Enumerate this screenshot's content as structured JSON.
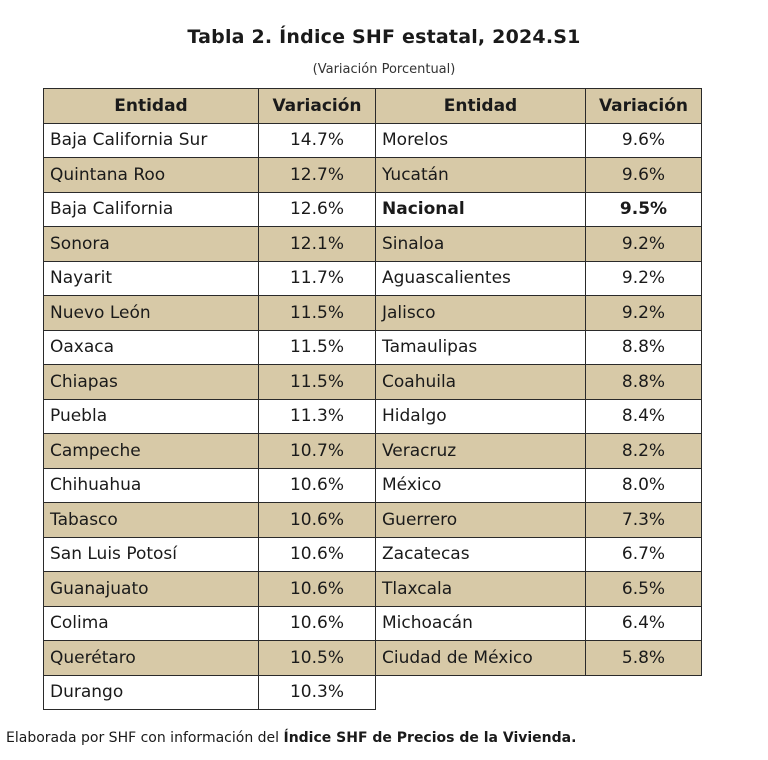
{
  "title": "Tabla 2. Índice SHF estatal, 2024.S1",
  "subtitle": "(Variación Porcentual)",
  "headers": {
    "entidad": "Entidad",
    "variacion": "Variación"
  },
  "left_rows": [
    {
      "entidad": "Baja California Sur",
      "variacion": "14.7%"
    },
    {
      "entidad": "Quintana Roo",
      "variacion": "12.7%"
    },
    {
      "entidad": "Baja California",
      "variacion": "12.6%"
    },
    {
      "entidad": "Sonora",
      "variacion": "12.1%"
    },
    {
      "entidad": "Nayarit",
      "variacion": "11.7%"
    },
    {
      "entidad": "Nuevo León",
      "variacion": "11.5%"
    },
    {
      "entidad": "Oaxaca",
      "variacion": "11.5%"
    },
    {
      "entidad": "Chiapas",
      "variacion": "11.5%"
    },
    {
      "entidad": "Puebla",
      "variacion": "11.3%"
    },
    {
      "entidad": "Campeche",
      "variacion": "10.7%"
    },
    {
      "entidad": "Chihuahua",
      "variacion": "10.6%"
    },
    {
      "entidad": "Tabasco",
      "variacion": "10.6%"
    },
    {
      "entidad": "San Luis Potosí",
      "variacion": "10.6%"
    },
    {
      "entidad": "Guanajuato",
      "variacion": "10.6%"
    },
    {
      "entidad": "Colima",
      "variacion": "10.6%"
    },
    {
      "entidad": "Querétaro",
      "variacion": "10.5%"
    },
    {
      "entidad": "Durango",
      "variacion": "10.3%"
    }
  ],
  "right_rows": [
    {
      "entidad": "Morelos",
      "variacion": "9.6%"
    },
    {
      "entidad": "Yucatán",
      "variacion": "9.6%"
    },
    {
      "entidad": "Nacional",
      "variacion": "9.5%",
      "bold": true
    },
    {
      "entidad": "Sinaloa",
      "variacion": "9.2%"
    },
    {
      "entidad": "Aguascalientes",
      "variacion": "9.2%"
    },
    {
      "entidad": "Jalisco",
      "variacion": "9.2%"
    },
    {
      "entidad": "Tamaulipas",
      "variacion": "8.8%"
    },
    {
      "entidad": "Coahuila",
      "variacion": "8.8%"
    },
    {
      "entidad": "Hidalgo",
      "variacion": "8.4%"
    },
    {
      "entidad": "Veracruz",
      "variacion": "8.2%"
    },
    {
      "entidad": "México",
      "variacion": "8.0%"
    },
    {
      "entidad": "Guerrero",
      "variacion": "7.3%"
    },
    {
      "entidad": "Zacatecas",
      "variacion": "6.7%"
    },
    {
      "entidad": "Tlaxcala",
      "variacion": "6.5%"
    },
    {
      "entidad": "Michoacán",
      "variacion": "6.4%"
    },
    {
      "entidad": "Ciudad de México",
      "variacion": "5.8%"
    }
  ],
  "footer": {
    "prefix": "Elaborada por SHF con información del ",
    "bold": "Índice SHF de Precios de la Vivienda."
  },
  "colors": {
    "shade": "#d7c9a7",
    "border": "#2a2a2a"
  }
}
